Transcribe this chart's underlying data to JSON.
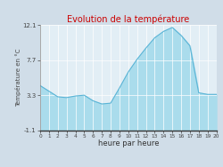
{
  "title": "Evolution de la température",
  "xlabel": "heure par heure",
  "ylabel": "Température en °C",
  "background_color": "#d0dde8",
  "plot_bg_color": "#e2eef5",
  "line_color": "#5ab4d6",
  "fill_color": "#aadcec",
  "title_color": "#cc0000",
  "ylim": [
    -1.1,
    12.1
  ],
  "xlim": [
    0,
    20
  ],
  "yticks": [
    -1.1,
    3.3,
    7.7,
    12.1
  ],
  "ytick_labels": [
    "-1.1",
    "3.3",
    "7.7",
    "12.1"
  ],
  "xticks": [
    0,
    1,
    2,
    3,
    4,
    5,
    6,
    7,
    8,
    9,
    10,
    11,
    12,
    13,
    14,
    15,
    16,
    17,
    18,
    19,
    20
  ],
  "hours": [
    0,
    1,
    2,
    3,
    4,
    5,
    6,
    7,
    8,
    9,
    10,
    11,
    12,
    13,
    14,
    15,
    16,
    17,
    18,
    19,
    20
  ],
  "temps": [
    4.5,
    3.8,
    3.1,
    3.0,
    3.2,
    3.3,
    2.6,
    2.2,
    2.3,
    4.2,
    6.2,
    7.8,
    9.2,
    10.5,
    11.3,
    11.8,
    10.8,
    9.5,
    3.6,
    3.4,
    3.4
  ]
}
